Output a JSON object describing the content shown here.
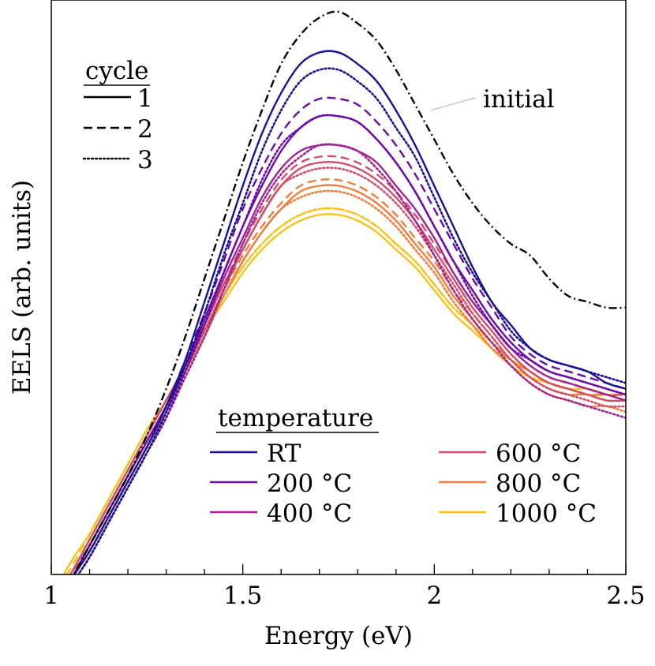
{
  "chart_data": {
    "type": "line",
    "title": "",
    "xlabel": "Energy (eV)",
    "ylabel": "EELS (arb. units)",
    "xlim": [
      1.0,
      2.5
    ],
    "ylim": [
      0.0,
      1.0
    ],
    "yticks_shown": false,
    "x_ticks": [
      {
        "value": 1.0,
        "label": "1"
      },
      {
        "value": 1.5,
        "label": "1.5"
      },
      {
        "value": 2.0,
        "label": "2"
      },
      {
        "value": 2.5,
        "label": "2.5"
      }
    ],
    "x_minor_tick_step": 0.1,
    "grid": false,
    "cycle_legend": {
      "title": "cycle",
      "placement": "top-left",
      "items": [
        {
          "label": "1",
          "dash": "solid"
        },
        {
          "label": "2",
          "dash": "dashed"
        },
        {
          "label": "3",
          "dash": "dotted"
        }
      ]
    },
    "temperature_legend": {
      "title": "temperature",
      "placement": "bottom-center",
      "items": [
        {
          "label": "RT",
          "color": "#1a1390"
        },
        {
          "label": "200 °C",
          "color": "#6a0ca6"
        },
        {
          "label": "400 °C",
          "color": "#a02594"
        },
        {
          "label": "600 °C",
          "color": "#d14e6a"
        },
        {
          "label": "800 °C",
          "color": "#ef7d40"
        },
        {
          "label": "1000 °C",
          "color": "#f6c21d"
        }
      ]
    },
    "annotation": {
      "text": "initial",
      "points_to": [
        1.99,
        0.83
      ]
    },
    "x": [
      1.0,
      1.05,
      1.1,
      1.15,
      1.2,
      1.25,
      1.3,
      1.35,
      1.4,
      1.45,
      1.5,
      1.55,
      1.6,
      1.65,
      1.7,
      1.75,
      1.8,
      1.85,
      1.9,
      1.95,
      2.0,
      2.05,
      2.1,
      2.15,
      2.2,
      2.25,
      2.3,
      2.35,
      2.4,
      2.45,
      2.5
    ],
    "series": [
      {
        "name": "",
        "color": "#000000",
        "dash": "dashdot",
        "values": [
          -0.03,
          0.02,
          0.08,
          0.14,
          0.2,
          0.27,
          0.35,
          0.44,
          0.54,
          0.64,
          0.74,
          0.83,
          0.91,
          0.96,
          0.99,
          1.0,
          0.98,
          0.95,
          0.9,
          0.84,
          0.78,
          0.72,
          0.67,
          0.63,
          0.6,
          0.58,
          0.54,
          0.51,
          0.5,
          0.49,
          0.49
        ]
      },
      {
        "name": "",
        "color": "#1a1390",
        "dash": "solid",
        "values": [
          -0.03,
          0.02,
          0.07,
          0.13,
          0.19,
          0.25,
          0.32,
          0.4,
          0.5,
          0.6,
          0.7,
          0.79,
          0.86,
          0.91,
          0.93,
          0.93,
          0.91,
          0.88,
          0.83,
          0.77,
          0.7,
          0.63,
          0.56,
          0.5,
          0.46,
          0.42,
          0.4,
          0.39,
          0.38,
          0.36,
          0.35
        ]
      },
      {
        "name": "",
        "color": "#1a1390",
        "dash": "dotted",
        "values": [
          -0.04,
          0.01,
          0.06,
          0.12,
          0.18,
          0.24,
          0.31,
          0.39,
          0.48,
          0.58,
          0.67,
          0.76,
          0.83,
          0.88,
          0.9,
          0.9,
          0.88,
          0.85,
          0.8,
          0.75,
          0.68,
          0.61,
          0.55,
          0.5,
          0.45,
          0.42,
          0.4,
          0.39,
          0.38,
          0.37,
          0.36
        ]
      },
      {
        "name": "",
        "color": "#6a0ca6",
        "dash": "solid",
        "values": [
          -0.03,
          0.02,
          0.08,
          0.14,
          0.2,
          0.26,
          0.32,
          0.39,
          0.47,
          0.55,
          0.63,
          0.7,
          0.76,
          0.8,
          0.82,
          0.82,
          0.81,
          0.78,
          0.74,
          0.69,
          0.63,
          0.57,
          0.52,
          0.47,
          0.43,
          0.4,
          0.38,
          0.37,
          0.36,
          0.35,
          0.34
        ]
      },
      {
        "name": "",
        "color": "#6a0ca6",
        "dash": "dashed",
        "values": [
          -0.03,
          0.02,
          0.07,
          0.13,
          0.19,
          0.25,
          0.32,
          0.4,
          0.48,
          0.57,
          0.66,
          0.73,
          0.79,
          0.83,
          0.85,
          0.85,
          0.84,
          0.81,
          0.77,
          0.72,
          0.66,
          0.6,
          0.54,
          0.49,
          0.44,
          0.41,
          0.39,
          0.38,
          0.37,
          0.36,
          0.35
        ]
      },
      {
        "name": "",
        "color": "#6a0ca6",
        "dash": "dotted",
        "values": [
          -0.04,
          0.01,
          0.06,
          0.12,
          0.18,
          0.24,
          0.3,
          0.38,
          0.46,
          0.55,
          0.63,
          0.71,
          0.77,
          0.8,
          0.82,
          0.82,
          0.81,
          0.78,
          0.74,
          0.69,
          0.63,
          0.57,
          0.51,
          0.46,
          0.42,
          0.4,
          0.38,
          0.37,
          0.36,
          0.35,
          0.34
        ]
      },
      {
        "name": "",
        "color": "#a02594",
        "dash": "solid",
        "values": [
          -0.03,
          0.02,
          0.08,
          0.14,
          0.2,
          0.26,
          0.32,
          0.39,
          0.46,
          0.54,
          0.61,
          0.68,
          0.73,
          0.76,
          0.77,
          0.77,
          0.76,
          0.74,
          0.7,
          0.66,
          0.61,
          0.55,
          0.5,
          0.46,
          0.42,
          0.39,
          0.37,
          0.36,
          0.35,
          0.34,
          0.33
        ]
      },
      {
        "name": "",
        "color": "#a02594",
        "dash": "dotted",
        "values": [
          -0.04,
          0.01,
          0.06,
          0.12,
          0.18,
          0.24,
          0.3,
          0.37,
          0.44,
          0.52,
          0.6,
          0.67,
          0.72,
          0.75,
          0.77,
          0.77,
          0.76,
          0.73,
          0.69,
          0.64,
          0.58,
          0.52,
          0.47,
          0.43,
          0.39,
          0.36,
          0.34,
          0.33,
          0.32,
          0.31,
          0.3
        ]
      },
      {
        "name": "",
        "color": "#d14e6a",
        "dash": "solid",
        "values": [
          -0.02,
          0.03,
          0.09,
          0.15,
          0.21,
          0.27,
          0.33,
          0.39,
          0.46,
          0.53,
          0.59,
          0.65,
          0.7,
          0.73,
          0.74,
          0.74,
          0.73,
          0.71,
          0.68,
          0.64,
          0.59,
          0.54,
          0.49,
          0.45,
          0.41,
          0.38,
          0.36,
          0.35,
          0.34,
          0.33,
          0.33
        ]
      },
      {
        "name": "",
        "color": "#d14e6a",
        "dash": "dashed",
        "values": [
          -0.02,
          0.03,
          0.08,
          0.14,
          0.2,
          0.26,
          0.32,
          0.39,
          0.46,
          0.53,
          0.6,
          0.66,
          0.71,
          0.74,
          0.75,
          0.75,
          0.74,
          0.72,
          0.69,
          0.65,
          0.6,
          0.55,
          0.5,
          0.46,
          0.42,
          0.39,
          0.37,
          0.36,
          0.35,
          0.34,
          0.34
        ]
      },
      {
        "name": "",
        "color": "#d14e6a",
        "dash": "dotted",
        "values": [
          -0.03,
          0.02,
          0.07,
          0.13,
          0.19,
          0.25,
          0.31,
          0.38,
          0.45,
          0.52,
          0.59,
          0.65,
          0.7,
          0.72,
          0.73,
          0.73,
          0.72,
          0.7,
          0.67,
          0.63,
          0.58,
          0.53,
          0.48,
          0.44,
          0.4,
          0.37,
          0.35,
          0.34,
          0.33,
          0.32,
          0.32
        ]
      },
      {
        "name": "",
        "color": "#ef7d40",
        "dash": "solid",
        "values": [
          -0.02,
          0.03,
          0.09,
          0.15,
          0.21,
          0.27,
          0.33,
          0.39,
          0.45,
          0.51,
          0.57,
          0.62,
          0.66,
          0.69,
          0.7,
          0.7,
          0.69,
          0.67,
          0.64,
          0.6,
          0.56,
          0.51,
          0.47,
          0.43,
          0.4,
          0.37,
          0.35,
          0.34,
          0.34,
          0.33,
          0.33
        ]
      },
      {
        "name": "",
        "color": "#ef7d40",
        "dash": "dashed",
        "values": [
          -0.02,
          0.03,
          0.09,
          0.15,
          0.21,
          0.27,
          0.33,
          0.39,
          0.45,
          0.52,
          0.58,
          0.63,
          0.67,
          0.7,
          0.71,
          0.71,
          0.7,
          0.68,
          0.65,
          0.61,
          0.57,
          0.52,
          0.48,
          0.44,
          0.4,
          0.38,
          0.36,
          0.35,
          0.34,
          0.34,
          0.33
        ]
      },
      {
        "name": "",
        "color": "#ef7d40",
        "dash": "dotted",
        "values": [
          -0.03,
          0.02,
          0.08,
          0.14,
          0.2,
          0.26,
          0.32,
          0.38,
          0.44,
          0.51,
          0.57,
          0.62,
          0.66,
          0.68,
          0.69,
          0.69,
          0.68,
          0.66,
          0.63,
          0.59,
          0.55,
          0.5,
          0.46,
          0.42,
          0.39,
          0.36,
          0.34,
          0.33,
          0.32,
          0.32,
          0.31
        ]
      },
      {
        "name": "",
        "color": "#f6c21d",
        "dash": "solid",
        "values": [
          -0.01,
          0.05,
          0.1,
          0.16,
          0.22,
          0.28,
          0.33,
          0.39,
          0.45,
          0.5,
          0.55,
          0.59,
          0.62,
          0.64,
          0.65,
          0.65,
          0.64,
          0.62,
          0.59,
          0.56,
          0.52,
          0.48,
          0.45,
          0.42,
          0.39,
          0.37,
          0.36,
          0.35,
          0.34,
          0.34,
          0.34
        ]
      },
      {
        "name": "",
        "color": "#f6c21d",
        "dash": "dashed",
        "values": [
          -0.01,
          0.04,
          0.1,
          0.16,
          0.22,
          0.28,
          0.33,
          0.39,
          0.45,
          0.51,
          0.56,
          0.6,
          0.63,
          0.65,
          0.66,
          0.66,
          0.65,
          0.63,
          0.6,
          0.57,
          0.53,
          0.49,
          0.46,
          0.42,
          0.4,
          0.38,
          0.36,
          0.35,
          0.35,
          0.34,
          0.34
        ]
      },
      {
        "name": "",
        "color": "#f6c21d",
        "dash": "dotted",
        "values": [
          -0.02,
          0.03,
          0.09,
          0.15,
          0.21,
          0.27,
          0.33,
          0.39,
          0.45,
          0.51,
          0.56,
          0.6,
          0.63,
          0.65,
          0.66,
          0.66,
          0.65,
          0.63,
          0.6,
          0.57,
          0.53,
          0.49,
          0.46,
          0.43,
          0.4,
          0.38,
          0.36,
          0.35,
          0.35,
          0.34,
          0.33
        ]
      }
    ]
  }
}
